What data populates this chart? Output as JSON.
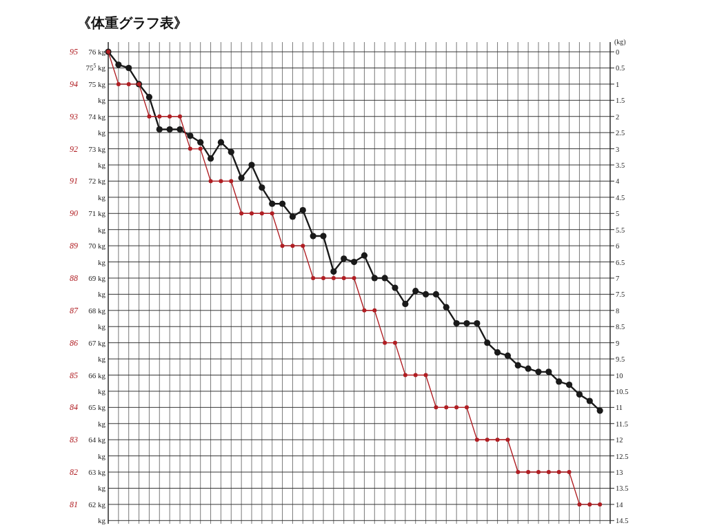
{
  "chart_data": {
    "type": "line",
    "title": "《体重グラフ表》",
    "categories": [
      null,
      null,
      null,
      null,
      null,
      null,
      null,
      null,
      null,
      null,
      null,
      null,
      null,
      null,
      null,
      null,
      null,
      null,
      null,
      null,
      null,
      null,
      null,
      null,
      null,
      null,
      null,
      null,
      null,
      null,
      null,
      null,
      null,
      null,
      null,
      null,
      null,
      null,
      null,
      null,
      null,
      null,
      null,
      null,
      null,
      null,
      null,
      null,
      null,
      null
    ],
    "series": [
      {
        "color": "#1a1a1a",
        "values": [
          76,
          75.6,
          75.5,
          75,
          74.6,
          73.6,
          73.6,
          73.6,
          73.4,
          73.2,
          72.7,
          73.2,
          72.9,
          72.1,
          72.5,
          71.8,
          71.3,
          71.3,
          70.9,
          71.1,
          70.3,
          70.3,
          69.2,
          69.6,
          69.5,
          69.7,
          69,
          69,
          68.7,
          68.2,
          68.6,
          68.5,
          68.5,
          68.1,
          67.6,
          67.6,
          67.6,
          67,
          66.7,
          66.6,
          66.3,
          66.2,
          66.1,
          66.1,
          65.8,
          65.7,
          65.4,
          65.2,
          64.9,
          null
        ]
      },
      {
        "color": "#b01e23",
        "axis": "y2",
        "values": [
          95,
          94,
          94,
          94,
          93,
          93,
          93,
          93,
          92,
          92,
          91,
          91,
          91,
          90,
          90,
          90,
          90,
          89,
          89,
          89,
          88,
          88,
          88,
          88,
          88,
          87,
          87,
          86,
          86,
          85,
          85,
          85,
          84,
          84,
          84,
          84,
          83,
          83,
          83,
          83,
          82,
          82,
          82,
          82,
          82,
          82,
          81,
          81,
          81,
          null
        ]
      }
    ],
    "ylim": [
      61.4,
      76.3
    ],
    "yticks": [
      {
        "value": 61.5,
        "label": "kg"
      },
      {
        "value": 62,
        "label": "62 kg"
      },
      {
        "value": 62.5,
        "label": "kg"
      },
      {
        "value": 63,
        "label": "63 kg"
      },
      {
        "value": 63.5,
        "label": "kg"
      },
      {
        "value": 64,
        "label": "64 kg"
      },
      {
        "value": 64.5,
        "label": "kg"
      },
      {
        "value": 65,
        "label": "65 kg"
      },
      {
        "value": 65.5,
        "label": "kg"
      },
      {
        "value": 66,
        "label": "66 kg"
      },
      {
        "value": 66.5,
        "label": "kg"
      },
      {
        "value": 67,
        "label": "67 kg"
      },
      {
        "value": 67.5,
        "label": "kg"
      },
      {
        "value": 68,
        "label": "68 kg"
      },
      {
        "value": 68.5,
        "label": "kg"
      },
      {
        "value": 69,
        "label": "69 kg"
      },
      {
        "value": 69.5,
        "label": "kg"
      },
      {
        "value": 70,
        "label": "70 kg"
      },
      {
        "value": 70.5,
        "label": "kg"
      },
      {
        "value": 71,
        "label": "71 kg"
      },
      {
        "value": 71.5,
        "label": "kg"
      },
      {
        "value": 72,
        "label": "72 kg"
      },
      {
        "value": 72.5,
        "label": "kg"
      },
      {
        "value": 73,
        "label": "73 kg"
      },
      {
        "value": 73.5,
        "label": "kg"
      },
      {
        "value": 74,
        "label": "74 kg"
      },
      {
        "value": 74.5,
        "label": "kg"
      },
      {
        "value": 75,
        "label": "75 kg"
      },
      {
        "value": 75.5,
        "label": "75$^{5}$ kg"
      },
      {
        "value": 76,
        "label": "76 kg"
      }
    ],
    "y2lim": [
      80.4,
      95.3
    ],
    "y2ticks": [
      81,
      82,
      83,
      84,
      85,
      86,
      87,
      88,
      89,
      90,
      91,
      92,
      93,
      94,
      95
    ],
    "y3lim": [
      14.6,
      -0.3
    ],
    "y3ticks": [
      0,
      0.5,
      1,
      1.5,
      2,
      2.5,
      3,
      3.5,
      4,
      4.5,
      5,
      5.5,
      6,
      6.5,
      7,
      7.5,
      8,
      8.5,
      9,
      9.5,
      10,
      10.5,
      11,
      11.5,
      12,
      12.5,
      13,
      13.5,
      14,
      14.5
    ],
    "y3label": "(kg)",
    "grid": true,
    "marker": "circle"
  }
}
